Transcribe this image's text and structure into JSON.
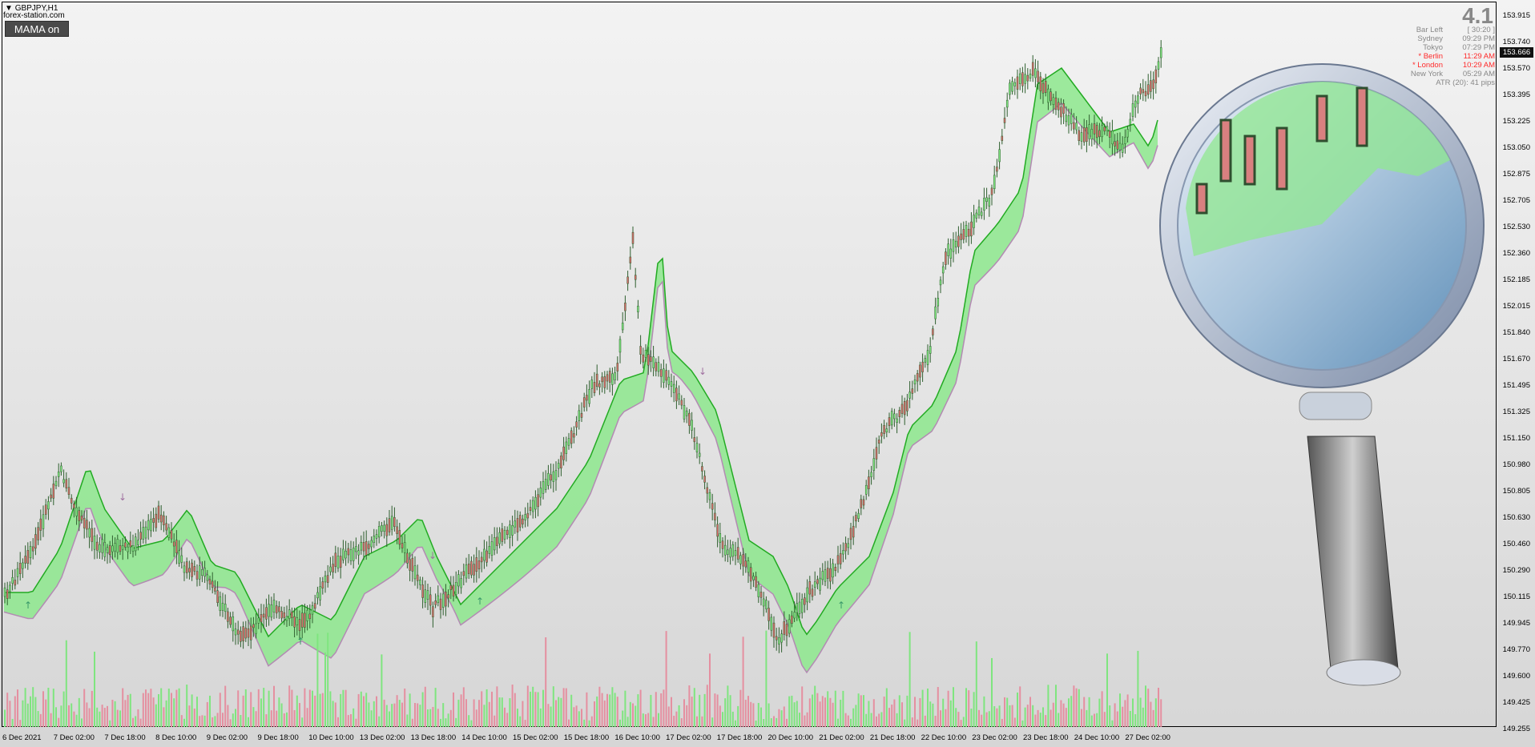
{
  "symbol": "GBPJPY,H1",
  "site": "forex-station.com",
  "mama_button": "MAMA on",
  "big_number": "4.1",
  "info_panel": [
    {
      "label": "Bar Left",
      "value": "[ 30:20 ]",
      "color": "#888888"
    },
    {
      "label": "Sydney",
      "value": "09:29 PM",
      "color": "#888888"
    },
    {
      "label": "Tokyo",
      "value": "07:29 PM",
      "color": "#888888"
    },
    {
      "label": "* Berlin",
      "value": "11:29 AM",
      "color": "#ff2a2a"
    },
    {
      "label": "* London",
      "value": "10:29 AM",
      "color": "#ff2a2a"
    },
    {
      "label": "New York",
      "value": "05:29 AM",
      "color": "#888888"
    },
    {
      "label": "ATR (20): 41 pips",
      "value": "",
      "color": "#888888"
    }
  ],
  "current_price": "153.666",
  "price_axis": [
    "153.915",
    "153.740",
    "153.570",
    "153.395",
    "153.225",
    "153.050",
    "152.875",
    "152.705",
    "152.530",
    "152.360",
    "152.185",
    "152.015",
    "151.840",
    "151.670",
    "151.495",
    "151.325",
    "151.150",
    "150.980",
    "150.805",
    "150.630",
    "150.460",
    "150.290",
    "150.115",
    "149.945",
    "149.770",
    "149.600",
    "149.425",
    "149.255"
  ],
  "time_axis": [
    "6 Dec 2021",
    "7 Dec 02:00",
    "7 Dec 18:00",
    "8 Dec 10:00",
    "9 Dec 02:00",
    "9 Dec 18:00",
    "10 Dec 10:00",
    "13 Dec 02:00",
    "13 Dec 18:00",
    "14 Dec 10:00",
    "15 Dec 02:00",
    "15 Dec 18:00",
    "16 Dec 10:00",
    "17 Dec 02:00",
    "17 Dec 18:00",
    "20 Dec 10:00",
    "21 Dec 02:00",
    "21 Dec 18:00",
    "22 Dec 10:00",
    "23 Dec 02:00",
    "23 Dec 18:00",
    "24 Dec 10:00",
    "27 Dec 02:00"
  ],
  "colors": {
    "bull": "#7fe57f",
    "bear": "#e58fa0",
    "cloud_up": "#8de88d",
    "cloud_down": "#d9b3d9",
    "line_up": "#22aa22",
    "line_down": "#b38ab3",
    "candle": "#2f5f2f"
  },
  "icons": [
    "magnifier-icon",
    "arrow-up-icon",
    "arrow-down-icon",
    "dropdown-triangle-icon"
  ]
}
